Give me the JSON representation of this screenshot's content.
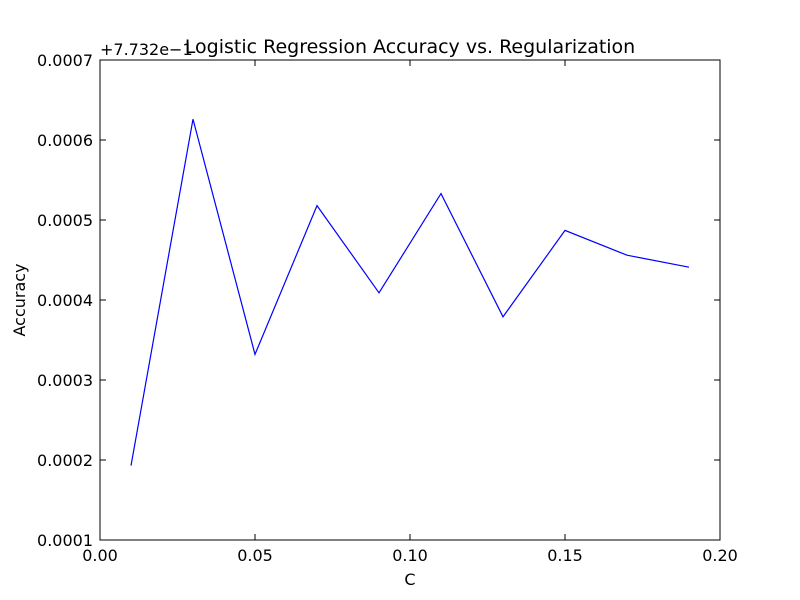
{
  "chart_data": {
    "type": "line",
    "title": "Logistic Regression Accuracy vs. Regularization",
    "xlabel": "C",
    "ylabel": "Accuracy",
    "y_offset_text": "+7.732e−1",
    "xlim": [
      0.0,
      0.2
    ],
    "ylim": [
      0.0001,
      0.0007
    ],
    "x_ticks": [
      0.0,
      0.05,
      0.1,
      0.15,
      0.2
    ],
    "x_tick_labels": [
      "0.00",
      "0.05",
      "0.10",
      "0.15",
      "0.20"
    ],
    "y_ticks": [
      0.0001,
      0.0002,
      0.0003,
      0.0004,
      0.0005,
      0.0006,
      0.0007
    ],
    "y_tick_labels": [
      "0.0001",
      "0.0002",
      "0.0003",
      "0.0004",
      "0.0005",
      "0.0006",
      "0.0007"
    ],
    "grid": false,
    "legend": "none",
    "series": [
      {
        "color": "#0000ff",
        "x": [
          0.01,
          0.03,
          0.05,
          0.07,
          0.09,
          0.11,
          0.13,
          0.15,
          0.17,
          0.19
        ],
        "y": [
          0.000193,
          0.000626,
          0.000332,
          0.000518,
          0.000409,
          0.000533,
          0.000379,
          0.000487,
          0.000456,
          0.000441
        ]
      }
    ]
  }
}
